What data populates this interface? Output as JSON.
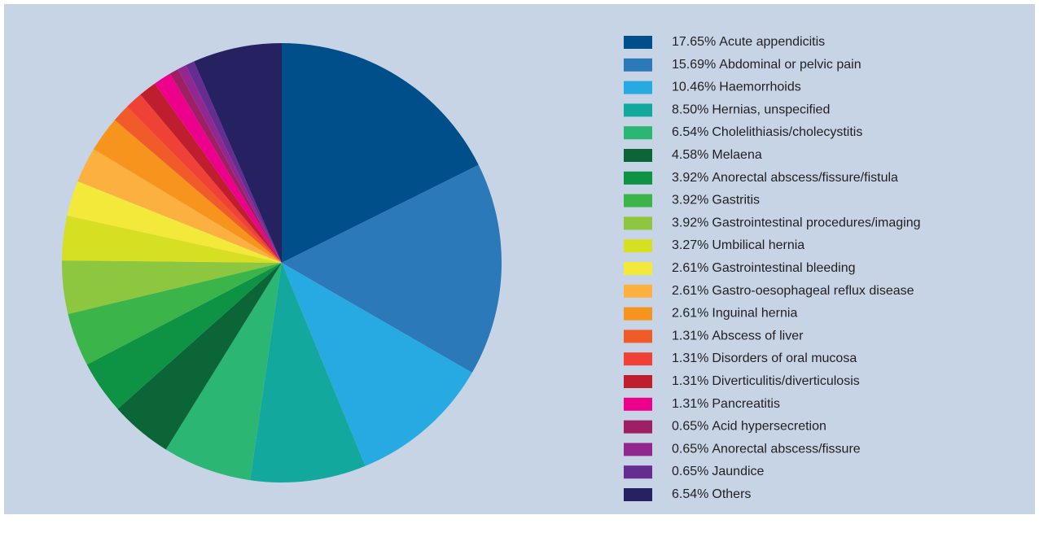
{
  "chart_data": {
    "type": "pie",
    "categories": [
      "Acute appendicitis",
      "Abdominal or pelvic pain",
      "Haemorrhoids",
      "Hernias, unspecified",
      "Cholelithiasis/cholecystitis",
      "Melaena",
      "Anorectal abscess/fissure/fistula",
      "Gastritis",
      "Gastrointestinal procedures/imaging",
      "Umbilical hernia",
      "Gastrointestinal bleeding",
      "Gastro-oesophageal reflux disease",
      "Inguinal hernia",
      "Abscess of liver",
      "Disorders of oral mucosa",
      "Diverticulitis/diverticulosis",
      "Pancreatitis",
      "Acid hypersecretion",
      "Anorectal abscess/fissure",
      "Jaundice",
      "Others"
    ],
    "values": [
      17.65,
      15.69,
      10.46,
      8.5,
      6.54,
      4.58,
      3.92,
      3.92,
      3.92,
      3.27,
      2.61,
      2.61,
      2.61,
      1.31,
      1.31,
      1.31,
      1.31,
      0.65,
      0.65,
      0.65,
      6.54
    ],
    "value_labels": [
      "17.65%",
      "15.69%",
      "10.46%",
      "8.50%",
      "6.54%",
      "4.58%",
      "3.92%",
      "3.92%",
      "3.92%",
      "3.27%",
      "2.61%",
      "2.61%",
      "2.61%",
      "1.31%",
      "1.31%",
      "1.31%",
      "1.31%",
      "0.65%",
      "0.65%",
      "0.65%",
      "6.54%"
    ],
    "colors": [
      "#004f8b",
      "#2b79b8",
      "#27aae1",
      "#13a89e",
      "#2bb673",
      "#0b6537",
      "#0e9345",
      "#3bb54a",
      "#8dc63f",
      "#d7df23",
      "#f2e93a",
      "#fbb040",
      "#f7941d",
      "#f15a29",
      "#ef4136",
      "#be1e2d",
      "#ec008c",
      "#9e1f63",
      "#92278f",
      "#662d91",
      "#262262"
    ],
    "legend": "right"
  }
}
